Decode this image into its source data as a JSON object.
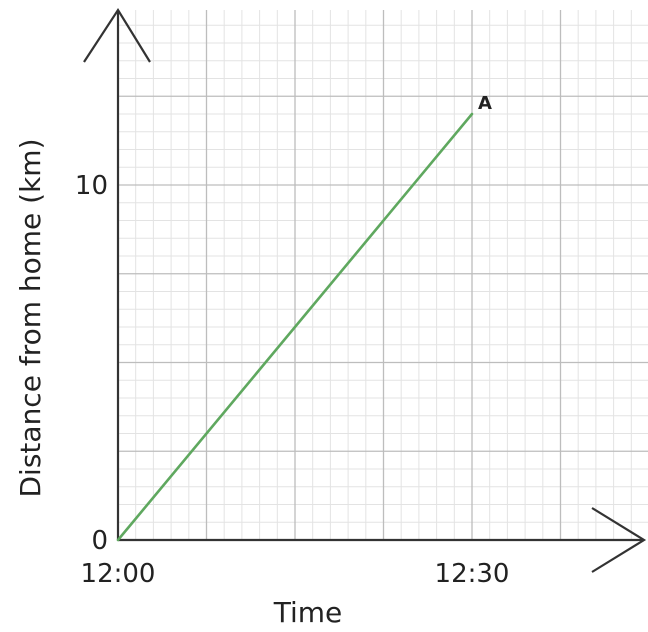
{
  "chart_data": {
    "type": "line",
    "xlabel": "Time",
    "ylabel": "Distance from home (km)",
    "x_ticks": [
      {
        "minutes": 0,
        "label": "12:00"
      },
      {
        "minutes": 30,
        "label": "12:30"
      }
    ],
    "y_ticks": [
      {
        "value": 0,
        "label": "0"
      },
      {
        "value": 10,
        "label": "10"
      }
    ],
    "xlim_minutes": [
      0,
      45
    ],
    "ylim": [
      0,
      15
    ],
    "grid": true,
    "series": [
      {
        "color": "#5fa85f",
        "points": [
          {
            "time": "12:00",
            "minutes": 0,
            "km": 0
          },
          {
            "time": "12:30",
            "minutes": 30,
            "km": 12
          }
        ]
      }
    ],
    "annotations": [
      {
        "label": "A",
        "time": "12:30",
        "minutes": 30,
        "km": 12
      }
    ]
  }
}
